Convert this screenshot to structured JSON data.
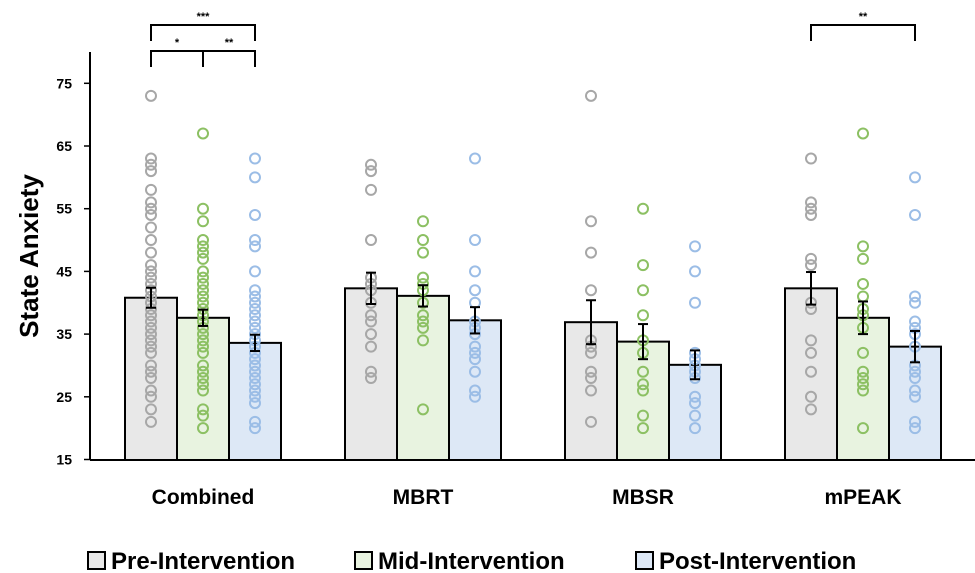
{
  "chart_data": {
    "type": "bar",
    "title": "",
    "xlabel": "",
    "ylabel": "State Anxiety",
    "ylim": [
      15,
      75
    ],
    "yticks": [
      15,
      25,
      35,
      45,
      55,
      65,
      75
    ],
    "grid": false,
    "legend_position": "bottom",
    "categories": [
      "Combined",
      "MBRT",
      "MBSR",
      "mPEAK"
    ],
    "series": [
      {
        "name": "Pre-Intervention",
        "fill": "#e8e8e8",
        "point_color": "#a7a7a7",
        "values": [
          40.8,
          42.3,
          36.9,
          42.3
        ],
        "errors": [
          1.6,
          2.5,
          3.5,
          2.6
        ],
        "points": [
          [
            21,
            23,
            25,
            26,
            28,
            29,
            30,
            32,
            33,
            34,
            35,
            36,
            37,
            38,
            39,
            40,
            41,
            42,
            43,
            44,
            45,
            46,
            48,
            50,
            52,
            54,
            55,
            56,
            58,
            61,
            62,
            63,
            73
          ],
          [
            28,
            29,
            33,
            35,
            37,
            38,
            40,
            42,
            43,
            44,
            50,
            58,
            61,
            62
          ],
          [
            21,
            26,
            28,
            29,
            32,
            33,
            34,
            42,
            48,
            53,
            73
          ],
          [
            23,
            25,
            29,
            32,
            34,
            39,
            40,
            46,
            47,
            54,
            55,
            56,
            63
          ]
        ]
      },
      {
        "name": "Mid-Intervention",
        "fill": "#e8f3e0",
        "point_color": "#8cc063",
        "values": [
          37.6,
          41.1,
          33.8,
          37.6
        ],
        "errors": [
          1.3,
          1.7,
          2.8,
          2.6
        ],
        "points": [
          [
            20,
            22,
            23,
            26,
            27,
            28,
            29,
            30,
            32,
            33,
            34,
            35,
            36,
            37,
            38,
            39,
            40,
            41,
            42,
            43,
            44,
            45,
            47,
            48,
            49,
            50,
            53,
            55,
            67
          ],
          [
            23,
            34,
            36,
            37,
            38,
            40,
            42,
            43,
            44,
            48,
            50,
            53
          ],
          [
            20,
            22,
            26,
            27,
            29,
            32,
            34,
            38,
            42,
            46,
            55
          ],
          [
            20,
            26,
            27,
            28,
            29,
            32,
            36,
            38,
            39,
            41,
            43,
            47,
            49,
            67
          ]
        ]
      },
      {
        "name": "Post-Intervention",
        "fill": "#dde8f6",
        "point_color": "#9bbde6",
        "values": [
          33.6,
          37.2,
          30.1,
          33.0
        ],
        "errors": [
          1.3,
          2.1,
          2.3,
          2.5
        ],
        "points": [
          [
            20,
            21,
            24,
            25,
            26,
            27,
            28,
            29,
            30,
            31,
            32,
            33,
            34,
            35,
            36,
            37,
            38,
            39,
            40,
            41,
            42,
            45,
            49,
            50,
            54,
            60,
            63
          ],
          [
            25,
            26,
            29,
            31,
            32,
            33,
            35,
            36,
            37,
            40,
            42,
            45,
            50,
            63
          ],
          [
            20,
            22,
            24,
            25,
            28,
            29,
            30,
            31,
            32,
            40,
            45,
            49
          ],
          [
            20,
            21,
            25,
            26,
            28,
            29,
            30,
            33,
            35,
            36,
            37,
            40,
            41,
            54,
            60
          ]
        ]
      }
    ],
    "significance": [
      {
        "category": "Combined",
        "from": "Pre-Intervention",
        "to": "Post-Intervention",
        "label": "***"
      },
      {
        "category": "Combined",
        "from": "Pre-Intervention",
        "to": "Mid-Intervention",
        "label": "*"
      },
      {
        "category": "Combined",
        "from": "Mid-Intervention",
        "to": "Post-Intervention",
        "label": "**"
      },
      {
        "category": "mPEAK",
        "from": "Pre-Intervention",
        "to": "Post-Intervention",
        "label": "**"
      }
    ]
  }
}
